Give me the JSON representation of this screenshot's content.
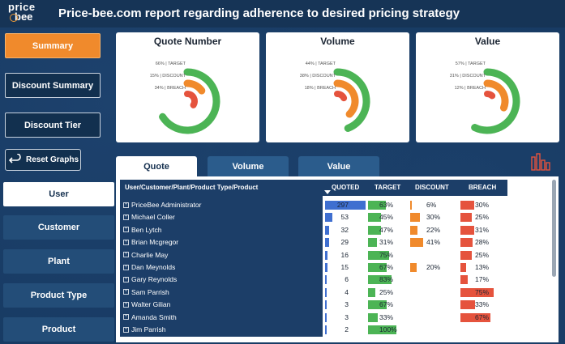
{
  "header": {
    "logo_line1": "price",
    "logo_line2": "bee",
    "title": "Price-bee.com report regarding adherence to desired pricing strategy"
  },
  "nav": {
    "summary": "Summary",
    "discount_summary": "Discount Summary",
    "discount_tier": "Discount Tier",
    "reset": "Reset Graphs"
  },
  "side_tabs": [
    "User",
    "Customer",
    "Plant",
    "Product Type",
    "Product"
  ],
  "cards": [
    {
      "title": "Quote Number",
      "target": "66% | TARGET",
      "discount": "15% | DISCOUNT",
      "breach": "34% | BREACH",
      "target_pct": 66,
      "discount_pct": 15,
      "breach_pct": 34
    },
    {
      "title": "Volume",
      "target": "44% | TARGET",
      "discount": "38% | DISCOUNT",
      "breach": "18% | BREACH",
      "target_pct": 44,
      "discount_pct": 38,
      "breach_pct": 18
    },
    {
      "title": "Value",
      "target": "57% | TARGET",
      "discount": "31% | DISCOUNT",
      "breach": "12% | BREACH",
      "target_pct": 57,
      "discount_pct": 31,
      "breach_pct": 12
    }
  ],
  "table_tabs": [
    "Quote",
    "Volume",
    "Value"
  ],
  "table": {
    "headers": [
      "User/Customer/Plant/Product Type/Product",
      "QUOTED",
      "TARGET",
      "DISCOUNT",
      "BREACH"
    ],
    "rows": [
      {
        "name": "PriceBee Administrator",
        "quoted": "297",
        "target": "63%",
        "discount": "6%",
        "breach": "30%",
        "q": 297,
        "t": 63,
        "d": 6,
        "b": 30
      },
      {
        "name": "Michael Coller",
        "quoted": "53",
        "target": "45%",
        "discount": "30%",
        "breach": "25%",
        "q": 53,
        "t": 45,
        "d": 30,
        "b": 25
      },
      {
        "name": "Ben Lytch",
        "quoted": "32",
        "target": "47%",
        "discount": "22%",
        "breach": "31%",
        "q": 32,
        "t": 47,
        "d": 22,
        "b": 31
      },
      {
        "name": "Brian Mcgregor",
        "quoted": "29",
        "target": "31%",
        "discount": "41%",
        "breach": "28%",
        "q": 29,
        "t": 31,
        "d": 41,
        "b": 28
      },
      {
        "name": "Charlie May",
        "quoted": "16",
        "target": "75%",
        "discount": "",
        "breach": "25%",
        "q": 16,
        "t": 75,
        "d": 0,
        "b": 25
      },
      {
        "name": "Dan Meynolds",
        "quoted": "15",
        "target": "67%",
        "discount": "20%",
        "breach": "13%",
        "q": 15,
        "t": 67,
        "d": 20,
        "b": 13
      },
      {
        "name": "Gary Reynolds",
        "quoted": "6",
        "target": "83%",
        "discount": "",
        "breach": "17%",
        "q": 6,
        "t": 83,
        "d": 0,
        "b": 17
      },
      {
        "name": "Sam Parrish",
        "quoted": "4",
        "target": "25%",
        "discount": "",
        "breach": "75%",
        "q": 4,
        "t": 25,
        "d": 0,
        "b": 75
      },
      {
        "name": "Walter Gilian",
        "quoted": "3",
        "target": "67%",
        "discount": "",
        "breach": "33%",
        "q": 3,
        "t": 67,
        "d": 0,
        "b": 33
      },
      {
        "name": "Amanda Smith",
        "quoted": "3",
        "target": "33%",
        "discount": "",
        "breach": "67%",
        "q": 3,
        "t": 33,
        "d": 0,
        "b": 67
      },
      {
        "name": "Jim Parrish",
        "quoted": "2",
        "target": "100%",
        "discount": "",
        "breach": "",
        "q": 2,
        "t": 100,
        "d": 0,
        "b": 0
      }
    ]
  },
  "colors": {
    "target": "#4cb455",
    "discount": "#f08a2c",
    "breach": "#e5533d",
    "quoted": "#3f6fd0"
  }
}
